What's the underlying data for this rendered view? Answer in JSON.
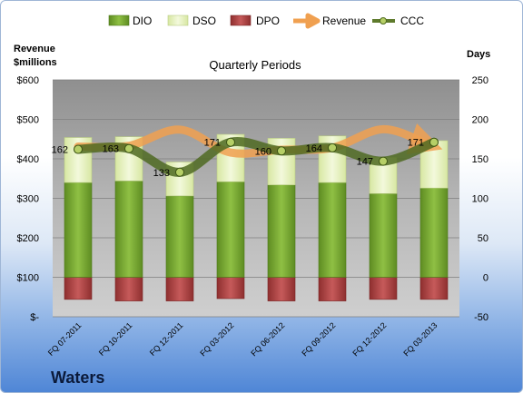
{
  "chart_data": {
    "type": "bar",
    "title": "Quarterly Periods",
    "company": "Waters",
    "left_axis_title": [
      "Revenue",
      "$millions"
    ],
    "right_axis_title": "Days",
    "left_ticks": [
      "$-",
      "$100",
      "$200",
      "$300",
      "$400",
      "$500",
      "$600"
    ],
    "left_ylim": [
      0,
      600
    ],
    "right_ticks": [
      "-50",
      "0",
      "50",
      "100",
      "150",
      "200",
      "250"
    ],
    "right_ylim": [
      -50,
      250
    ],
    "categories": [
      "FQ 07-2011",
      "FQ 10-2011",
      "FQ 12-2011",
      "FQ 03-2012",
      "FQ 06-2012",
      "FQ 09-2012",
      "FQ 12-2012",
      "FQ 03-2013"
    ],
    "legend": [
      "DIO",
      "DSO",
      "DPO",
      "Revenue",
      "CCC"
    ],
    "series": [
      {
        "name": "DIO",
        "axis": "right",
        "stacked": true,
        "values": [
          120,
          122,
          103,
          121,
          117,
          120,
          106,
          113
        ]
      },
      {
        "name": "DSO",
        "axis": "right",
        "stacked": true,
        "values": [
          57,
          56,
          43,
          60,
          59,
          59,
          46,
          60
        ]
      },
      {
        "name": "DPO",
        "axis": "right",
        "stacked": "negative",
        "values": [
          -28,
          -30,
          -30,
          -27,
          -30,
          -30,
          -28,
          -28
        ]
      },
      {
        "name": "Revenue",
        "axis": "left",
        "values": [
          431,
          433,
          474,
          416,
          423,
          428,
          475,
          436
        ]
      },
      {
        "name": "CCC",
        "axis": "right",
        "values": [
          162,
          163,
          133,
          171,
          160,
          164,
          147,
          171
        ],
        "labels": [
          "162",
          "163",
          "133",
          "171",
          "160",
          "164",
          "147",
          "171"
        ]
      }
    ],
    "colors": {
      "DIO": "#7fb03a",
      "DSO": "#e8f2c0",
      "DPO": "#b84b4b",
      "Revenue": "#f0a050",
      "CCC": "#5e7a2c",
      "plot_bg": "#a6a6a6"
    },
    "grid": true
  }
}
